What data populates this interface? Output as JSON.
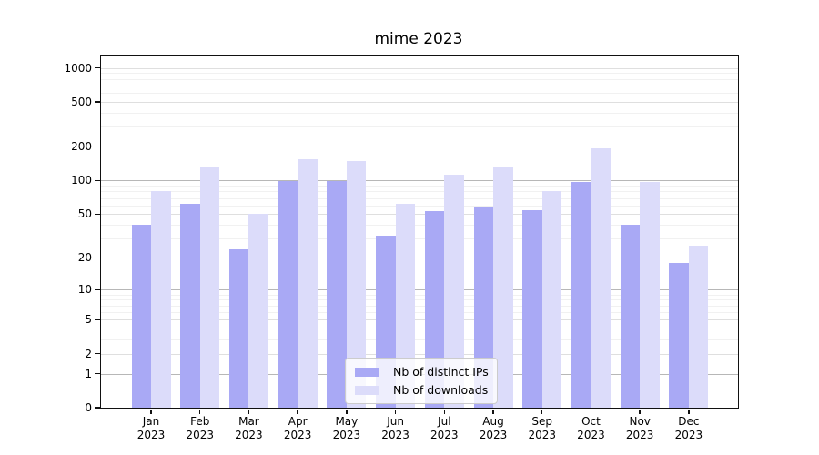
{
  "figure": {
    "title": "mime 2023"
  },
  "chart_data": {
    "type": "bar",
    "title": "mime 2023",
    "categories": [
      "Jan",
      "Feb",
      "Mar",
      "Apr",
      "May",
      "Jun",
      "Jul",
      "Aug",
      "Sep",
      "Oct",
      "Nov",
      "Dec"
    ],
    "x_year_label": "2023",
    "series": [
      {
        "name": "Nb of distinct IPs",
        "color": "#a9a9f5",
        "values": [
          40,
          62,
          24,
          100,
          100,
          32,
          53,
          58,
          54,
          97,
          40,
          18
        ]
      },
      {
        "name": "Nb of downloads",
        "color": "#dcdcfa",
        "values": [
          80,
          130,
          50,
          155,
          150,
          62,
          112,
          130,
          80,
          195,
          97,
          26
        ]
      }
    ],
    "y_ticks": [
      0,
      1,
      2,
      5,
      10,
      20,
      50,
      100,
      200,
      500,
      1000
    ],
    "y_scale": "log1p",
    "ylim": [
      0,
      1300
    ],
    "grid": true,
    "legend_position": "lower center"
  }
}
